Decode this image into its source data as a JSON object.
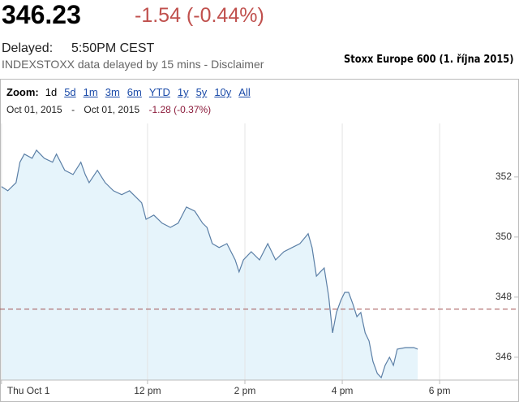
{
  "header": {
    "price": "346.23",
    "change": "-1.54 (-0.44%)",
    "delayed_label": "Delayed:",
    "delayed_time": "5:50PM CEST",
    "source_note": "INDEXSTOXX data delayed by 15 mins - Disclaimer",
    "caption": "Stoxx Europe 600 (1. října 2015)"
  },
  "toolbar": {
    "zoom_label": "Zoom:",
    "zoom_options": [
      "1d",
      "5d",
      "1m",
      "3m",
      "6m",
      "YTD",
      "1y",
      "5y",
      "10y",
      "All"
    ],
    "selected_zoom": "1d",
    "range_start": "Oct 01, 2015",
    "range_separator": "-",
    "range_end": "Oct 01, 2015",
    "range_change": "-1.28 (-0.37%)"
  },
  "chart_data": {
    "type": "line",
    "color": "#5b7fa6",
    "fill_color": "#e6f4fb",
    "x": [
      9.0,
      9.13,
      9.3,
      9.38,
      9.47,
      9.63,
      9.72,
      9.88,
      10.05,
      10.13,
      10.3,
      10.47,
      10.63,
      10.72,
      10.8,
      10.97,
      11.13,
      11.3,
      11.47,
      11.63,
      11.8,
      11.88,
      11.97,
      12.13,
      12.3,
      12.47,
      12.63,
      12.8,
      12.97,
      13.13,
      13.22,
      13.33,
      13.47,
      13.63,
      13.8,
      13.88,
      13.97,
      14.13,
      14.3,
      14.47,
      14.63,
      14.8,
      14.97,
      15.13,
      15.3,
      15.38,
      15.47,
      15.55,
      15.63,
      15.72,
      15.8,
      15.88,
      15.97,
      16.05,
      16.13,
      16.22,
      16.3,
      16.38,
      16.47,
      16.55,
      16.63,
      16.72,
      16.8,
      16.88,
      16.97,
      17.05,
      17.13,
      17.3,
      17.47,
      17.55
    ],
    "values": [
      351.68,
      351.54,
      351.81,
      352.49,
      352.76,
      352.62,
      352.89,
      352.62,
      352.49,
      352.76,
      352.22,
      352.08,
      352.49,
      352.08,
      351.81,
      352.22,
      351.81,
      351.54,
      351.41,
      351.54,
      351.27,
      351.14,
      350.59,
      350.73,
      350.46,
      350.32,
      350.46,
      351.0,
      350.86,
      350.46,
      350.32,
      349.78,
      349.65,
      349.78,
      349.24,
      348.84,
      349.24,
      349.51,
      349.24,
      349.78,
      349.24,
      349.51,
      349.65,
      349.78,
      350.11,
      349.65,
      348.7,
      348.84,
      348.97,
      348.03,
      346.81,
      347.49,
      347.89,
      348.16,
      348.16,
      347.76,
      347.35,
      347.49,
      346.81,
      346.54,
      345.86,
      345.46,
      345.32,
      345.73,
      346.0,
      345.73,
      346.27,
      346.32,
      346.32,
      346.27
    ],
    "xlim": [
      8.97,
      19.63
    ],
    "xticks": [
      {
        "value": 9,
        "label": "Thu Oct 1"
      },
      {
        "value": 12,
        "label": "12 pm"
      },
      {
        "value": 14,
        "label": "2 pm"
      },
      {
        "value": 16,
        "label": "4 pm"
      },
      {
        "value": 18,
        "label": "6 pm"
      }
    ],
    "ylim": [
      345.24,
      353.78
    ],
    "yticks": [
      346,
      348,
      350,
      352
    ],
    "reference_line": 347.6,
    "reference_color": "#a05050",
    "xgrid": true
  }
}
